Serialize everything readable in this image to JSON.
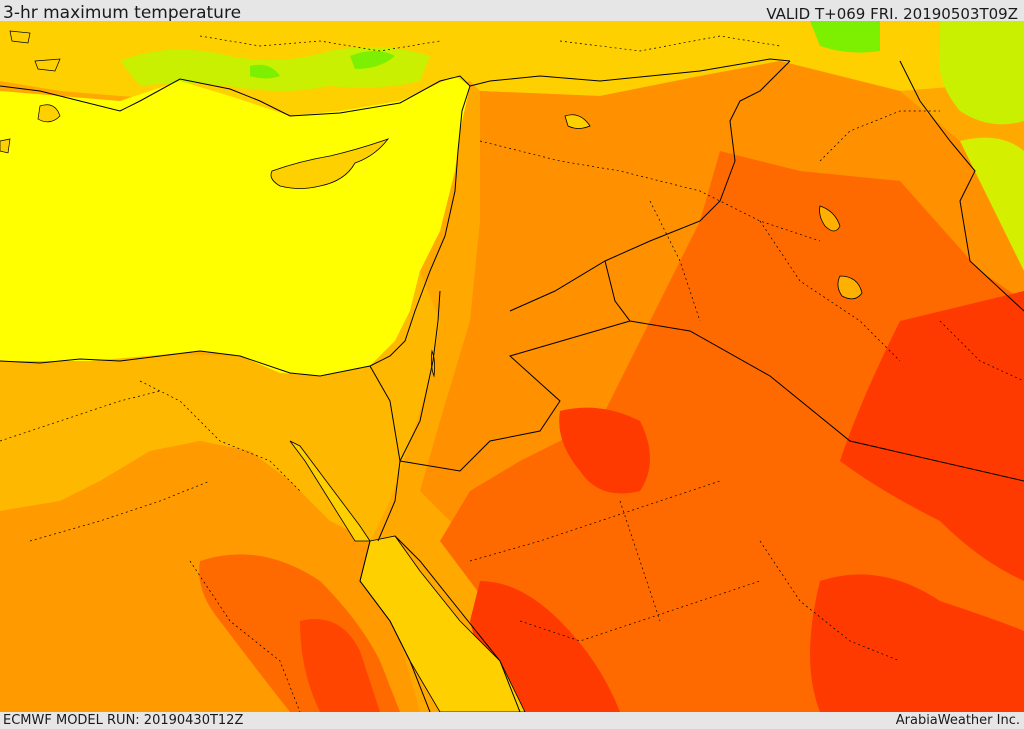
{
  "header": {
    "title": "3-hr maximum temperature",
    "valid": "VALID T+069 FRI. 20190503T09Z"
  },
  "footer": {
    "model_run": "ECMWF MODEL RUN: 20190430T12Z",
    "credit": "ArabiaWeather Inc."
  },
  "map": {
    "field": "3-hr maximum temperature",
    "colors": {
      "sea": "#ffff00",
      "light_yellow": "#ffd700",
      "orange_light": "#ffb000",
      "orange": "#ff8c00",
      "orange_dark": "#ff6a00",
      "red_orange": "#ff4500",
      "red": "#ff2a00",
      "green": "#adff2f",
      "green_bright": "#7cfc00",
      "boundary": "#000000"
    }
  }
}
